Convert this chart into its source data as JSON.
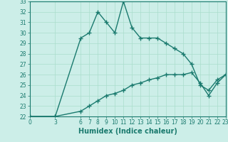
{
  "xlabel": "Humidex (Indice chaleur)",
  "line1_x": [
    0,
    3,
    6,
    7,
    8,
    9,
    10,
    11,
    12,
    13,
    14,
    15,
    16,
    17,
    18,
    19,
    20,
    21,
    22,
    23
  ],
  "line1_y": [
    22,
    22,
    29.5,
    30,
    32,
    31,
    30,
    33,
    30.5,
    29.5,
    29.5,
    29.5,
    29,
    28.5,
    28,
    27,
    25,
    24.5,
    25.5,
    26
  ],
  "line2_x": [
    0,
    3,
    6,
    7,
    8,
    9,
    10,
    11,
    12,
    13,
    14,
    15,
    16,
    17,
    18,
    19,
    20,
    21,
    22,
    23
  ],
  "line2_y": [
    22,
    22,
    22.5,
    23,
    23.5,
    24,
    24.2,
    24.5,
    25,
    25.2,
    25.5,
    25.7,
    26,
    26,
    26,
    26.2,
    25.2,
    24,
    25.2,
    26
  ],
  "line_color": "#1a7a6e",
  "bg_color": "#cceee8",
  "grid_color": "#aaddcc",
  "ylim": [
    22,
    33
  ],
  "xlim": [
    0,
    23
  ],
  "yticks": [
    22,
    23,
    24,
    25,
    26,
    27,
    28,
    29,
    30,
    31,
    32,
    33
  ],
  "xticks": [
    0,
    3,
    6,
    7,
    8,
    9,
    10,
    11,
    12,
    13,
    14,
    15,
    16,
    17,
    18,
    19,
    20,
    21,
    22,
    23
  ],
  "xtick_labels": [
    "0",
    "3",
    "6",
    "7",
    "8",
    "9",
    "10",
    "11",
    "12",
    "13",
    "14",
    "15",
    "16",
    "17",
    "18",
    "19",
    "20",
    "21",
    "22",
    "23"
  ],
  "marker": "+",
  "linewidth": 1.0,
  "markersize": 4,
  "tick_fontsize": 5.5,
  "xlabel_fontsize": 7.0
}
